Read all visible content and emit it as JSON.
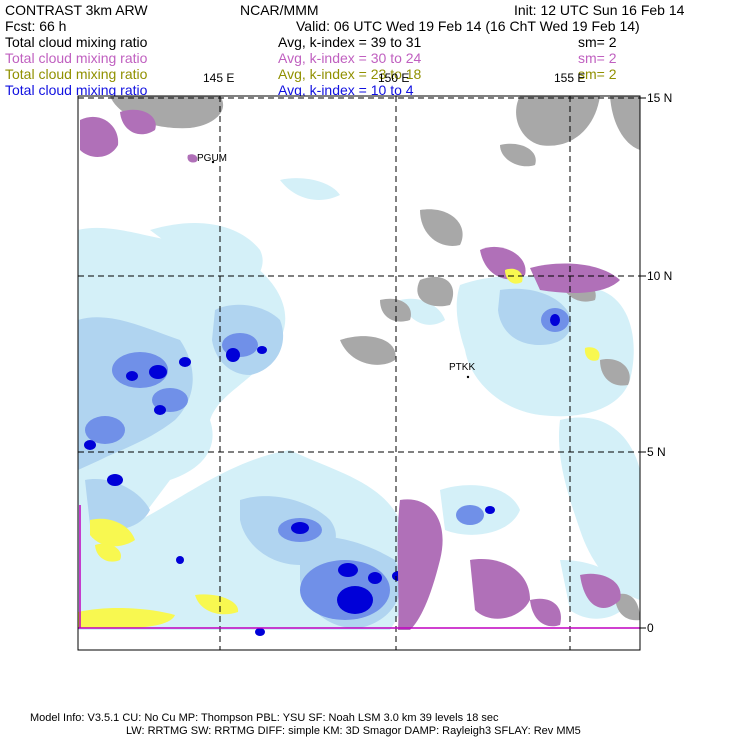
{
  "header": {
    "model": "CONTRAST  3km ARW",
    "org": "NCAR/MMM",
    "init": "Init: 12 UTC Sun 16 Feb 14",
    "fcst": "Fcst:   66 h",
    "valid": "Valid: 06 UTC Wed 19 Feb 14 (16 ChT Wed 19 Feb 14)"
  },
  "fields": [
    {
      "name": "Total cloud mixing ratio",
      "kindex": "Avg, k-index =  39  to  31",
      "sm": "sm= 2",
      "color": "#000000"
    },
    {
      "name": "Total cloud mixing ratio",
      "kindex": "Avg, k-index =  30  to  24",
      "sm": "sm= 2",
      "color": "#c060c0"
    },
    {
      "name": "Total cloud mixing ratio",
      "kindex": "Avg, k-index =  23  to  18",
      "sm": "sm= 2",
      "color": "#909000"
    },
    {
      "name": "Total cloud mixing ratio",
      "kindex": "Avg, k-index =  10  to   4",
      "sm": "",
      "color": "#1010e0"
    }
  ],
  "map": {
    "lon_labels": [
      "145 E",
      "150 E",
      "155 E"
    ],
    "lat_labels": [
      "15 N",
      "10 N",
      "5 N",
      "0"
    ],
    "stations": [
      "PGUM",
      "PTKK"
    ]
  },
  "footer": {
    "line1": "Model Info: V3.5.1     CU: No Cu      MP: Thompson      PBL: YSU        SF: Noah LSM      3.0 km   39 levels    18 sec",
    "line2": "LW: RRTMG     SW: RRTMG   DIFF: simple KM: 3D Smagor DAMP: Rayleigh3   SFLAY: Rev MM5"
  },
  "colors": {
    "light_cyan": "#d4f0f8",
    "light_blue": "#b0d4f0",
    "mid_blue": "#7090e8",
    "deep_blue": "#0000d8",
    "gray": "#a8a8a8",
    "purple": "#b070b8",
    "yellow": "#f8f850"
  }
}
